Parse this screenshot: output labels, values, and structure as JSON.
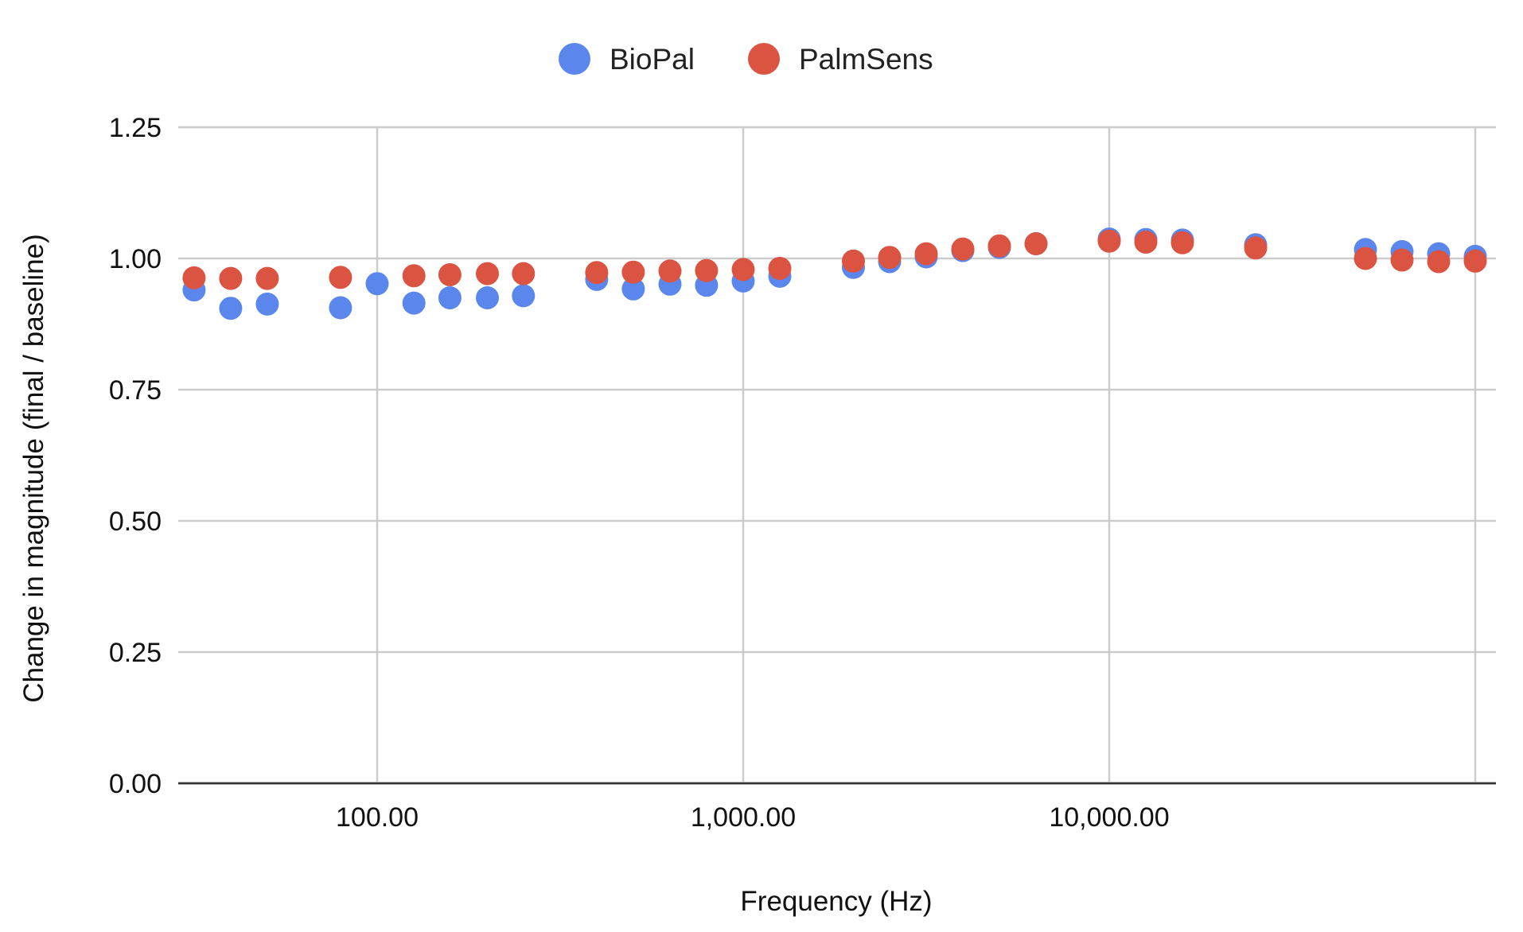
{
  "chart_data": {
    "type": "scatter",
    "title": "",
    "xlabel": "Frequency (Hz)",
    "ylabel": "Change in magnitude (final / baseline)",
    "x_scale": "log",
    "xlim": [
      45,
      1000000
    ],
    "ylim": [
      0,
      1.25
    ],
    "x_ticks": [
      100,
      1000,
      10000,
      100000
    ],
    "x_tick_labels": [
      "100.00",
      "1,000.00",
      "10,000.00",
      ""
    ],
    "y_ticks": [
      0,
      0.25,
      0.5,
      0.75,
      1.0,
      1.25
    ],
    "y_tick_labels": [
      "0.00",
      "0.25",
      "0.50",
      "0.75",
      "1.00",
      "1.25"
    ],
    "grid": true,
    "legend_position": "top-center",
    "series": [
      {
        "name": "BioPal",
        "color": "#5B87EC",
        "points": [
          [
            31.6,
            0.94
          ],
          [
            39.8,
            0.905
          ],
          [
            50.1,
            0.913
          ],
          [
            79.4,
            0.906
          ],
          [
            100,
            0.952
          ],
          [
            126,
            0.915
          ],
          [
            158,
            0.925
          ],
          [
            200,
            0.925
          ],
          [
            251,
            0.929
          ],
          [
            398,
            0.96
          ],
          [
            501,
            0.942
          ],
          [
            631,
            0.951
          ],
          [
            794,
            0.949
          ],
          [
            1000,
            0.957
          ],
          [
            1259,
            0.966
          ],
          [
            2000,
            0.983
          ],
          [
            2512,
            0.994
          ],
          [
            3162,
            1.003
          ],
          [
            3981,
            1.015
          ],
          [
            5012,
            1.021
          ],
          [
            6310,
            1.028
          ],
          [
            10000,
            1.037
          ],
          [
            12589,
            1.036
          ],
          [
            15849,
            1.035
          ],
          [
            25119,
            1.026
          ],
          [
            50119,
            1.017
          ],
          [
            63096,
            1.013
          ],
          [
            79433,
            1.009
          ],
          [
            100000,
            1.004
          ]
        ]
      },
      {
        "name": "PalmSens",
        "color": "#DB5442",
        "points": [
          [
            31.6,
            0.963
          ],
          [
            39.8,
            0.962
          ],
          [
            50.1,
            0.962
          ],
          [
            79.4,
            0.964
          ],
          [
            126,
            0.967
          ],
          [
            158,
            0.969
          ],
          [
            200,
            0.971
          ],
          [
            251,
            0.971
          ],
          [
            398,
            0.973
          ],
          [
            501,
            0.974
          ],
          [
            631,
            0.976
          ],
          [
            794,
            0.977
          ],
          [
            1000,
            0.979
          ],
          [
            1259,
            0.981
          ],
          [
            2000,
            0.995
          ],
          [
            2512,
            1.002
          ],
          [
            3162,
            1.009
          ],
          [
            3981,
            1.018
          ],
          [
            5012,
            1.024
          ],
          [
            6310,
            1.028
          ],
          [
            10000,
            1.033
          ],
          [
            12589,
            1.031
          ],
          [
            15849,
            1.03
          ],
          [
            25119,
            1.02
          ],
          [
            50119,
            1.0
          ],
          [
            63096,
            0.997
          ],
          [
            79433,
            0.994
          ],
          [
            100000,
            0.995
          ]
        ]
      }
    ]
  }
}
